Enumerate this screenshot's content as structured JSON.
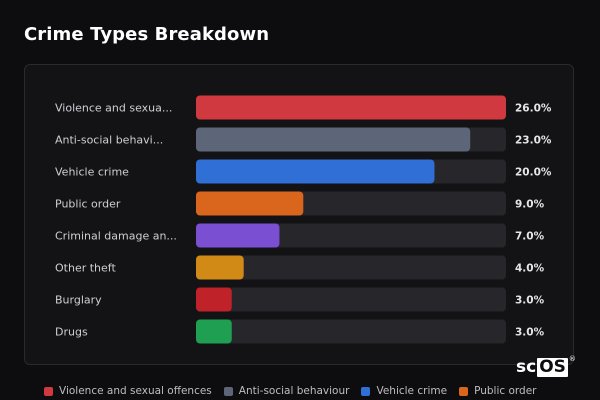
{
  "title": "Crime Types Breakdown",
  "brand": {
    "prefix": "sc",
    "boxed": "OS",
    "mark": "®"
  },
  "chart_data": {
    "type": "bar",
    "orientation": "horizontal",
    "categories": [
      "Violence and sexua...",
      "Anti-social behavi...",
      "Vehicle crime",
      "Public order",
      "Criminal damage an...",
      "Other theft",
      "Burglary",
      "Drugs"
    ],
    "values": [
      26.0,
      23.0,
      20.0,
      9.0,
      7.0,
      4.0,
      3.0,
      3.0
    ],
    "value_labels": [
      "26.0%",
      "23.0%",
      "20.0%",
      "9.0%",
      "7.0%",
      "4.0%",
      "3.0%",
      "3.0%"
    ],
    "colors": [
      "#d0393f",
      "#5d6678",
      "#2f6fd6",
      "#d9661c",
      "#7a4fd1",
      "#d18a16",
      "#bf2228",
      "#1f9f51"
    ],
    "track_color": "#26262b",
    "xlim": [
      0,
      26
    ],
    "title": "Crime Types Breakdown",
    "grid": false,
    "legend": {
      "placement": "bottom",
      "entries": [
        {
          "label": "Violence and sexual offences",
          "color": "#d0393f"
        },
        {
          "label": "Anti-social behaviour",
          "color": "#5d6678"
        },
        {
          "label": "Vehicle crime",
          "color": "#2f6fd6"
        },
        {
          "label": "Public order",
          "color": "#d9661c"
        }
      ]
    }
  }
}
